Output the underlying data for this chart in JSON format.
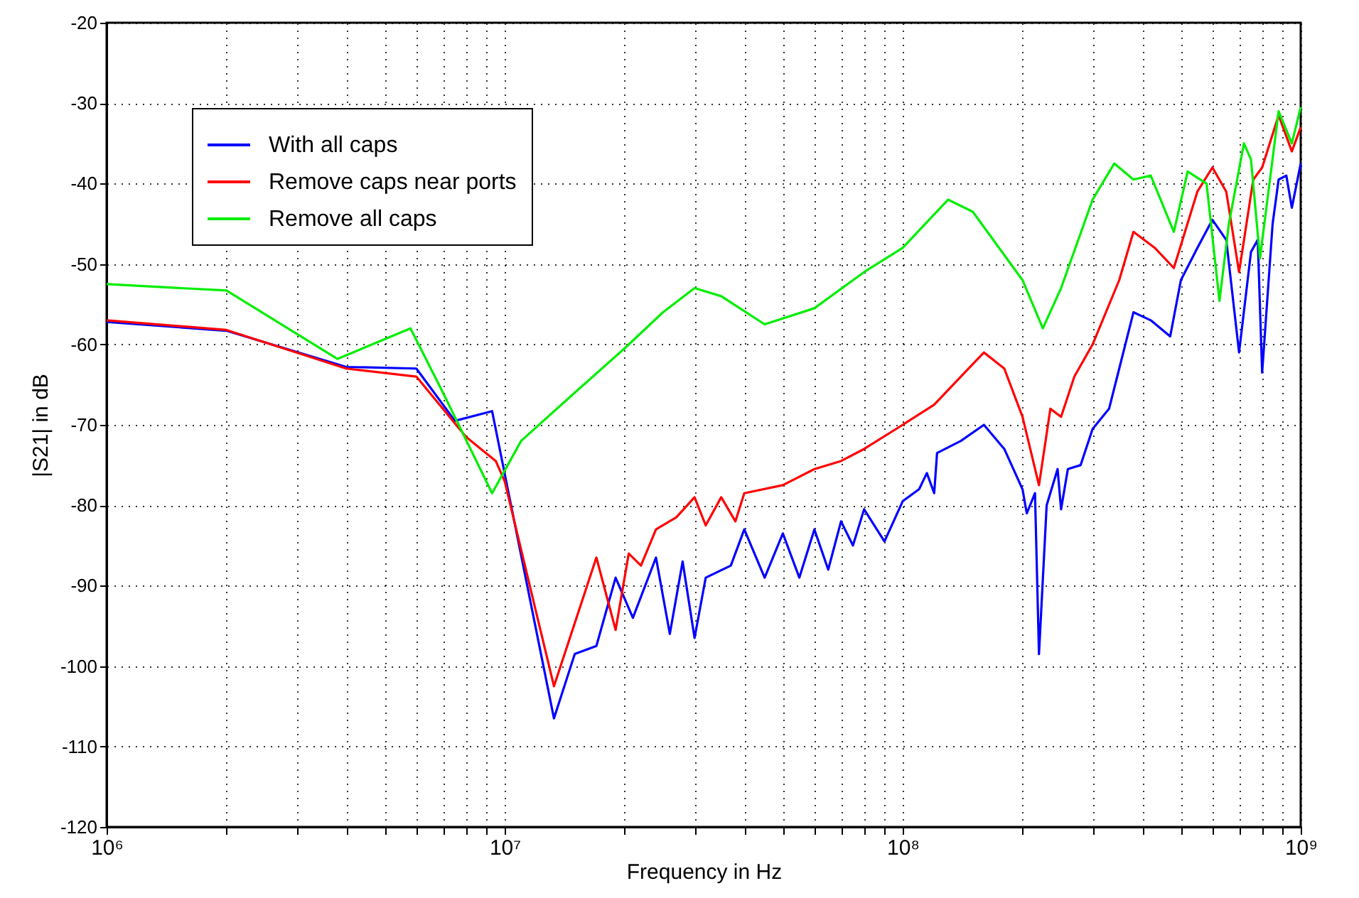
{
  "chart_data": {
    "type": "line",
    "xlabel": "Frequency in Hz",
    "ylabel": "|S21| in dB",
    "log": "x",
    "grid": true,
    "legend": "top left",
    "marker": "none",
    "line_style": "solid",
    "xlim": [
      1000000,
      1000000000
    ],
    "ylim": [
      -120,
      -20
    ],
    "xticks": [
      {
        "value": 1000000,
        "label": "10⁶"
      },
      {
        "value": 2000000,
        "label": null
      },
      {
        "value": 3000000,
        "label": null
      },
      {
        "value": 4000000,
        "label": null
      },
      {
        "value": 5000000,
        "label": null
      },
      {
        "value": 6000000,
        "label": null
      },
      {
        "value": 7000000,
        "label": null
      },
      {
        "value": 8000000,
        "label": null
      },
      {
        "value": 9000000,
        "label": null
      },
      {
        "value": 10000000,
        "label": "10⁷"
      },
      {
        "value": 20000000,
        "label": null
      },
      {
        "value": 30000000,
        "label": null
      },
      {
        "value": 40000000,
        "label": null
      },
      {
        "value": 50000000,
        "label": null
      },
      {
        "value": 60000000,
        "label": null
      },
      {
        "value": 70000000,
        "label": null
      },
      {
        "value": 80000000,
        "label": null
      },
      {
        "value": 90000000,
        "label": null
      },
      {
        "value": 100000000,
        "label": "10⁸"
      },
      {
        "value": 200000000,
        "label": null
      },
      {
        "value": 300000000,
        "label": null
      },
      {
        "value": 400000000,
        "label": null
      },
      {
        "value": 500000000,
        "label": null
      },
      {
        "value": 600000000,
        "label": null
      },
      {
        "value": 700000000,
        "label": null
      },
      {
        "value": 800000000,
        "label": null
      },
      {
        "value": 900000000,
        "label": null
      },
      {
        "value": 1000000000,
        "label": "10⁹"
      }
    ],
    "yticks": [
      -120,
      -110,
      -100,
      -90,
      -80,
      -70,
      -60,
      -50,
      -40,
      -30,
      -20
    ],
    "series": [
      {
        "name": "With all caps",
        "color": "#0000ff",
        "x": [
          1000000,
          2000000,
          4000000,
          6000000,
          7500000,
          9300000,
          13300000,
          15000000,
          17000000,
          19000000,
          21000000,
          24000000,
          26000000,
          28000000,
          30000000,
          32000000,
          37000000,
          40000000,
          45000000,
          50000000,
          55000000,
          60000000,
          65000000,
          70000000,
          75000000,
          80000000,
          90000000,
          100000000,
          110000000,
          115000000,
          120000000,
          122000000,
          140000000,
          160000000,
          180000000,
          200000000,
          205000000,
          215000000,
          220000000,
          230000000,
          245000000,
          250000000,
          260000000,
          280000000,
          300000000,
          330000000,
          350000000,
          380000000,
          420000000,
          470000000,
          500000000,
          550000000,
          600000000,
          650000000,
          700000000,
          750000000,
          780000000,
          800000000,
          850000000,
          880000000,
          920000000,
          950000000,
          1000000000
        ],
        "values": [
          -57.2,
          -58.3,
          -62.8,
          -63,
          -69.5,
          -68.3,
          -106.5,
          -98.5,
          -97.5,
          -89,
          -94,
          -86.5,
          -96,
          -87,
          -96.5,
          -89,
          -87.5,
          -83,
          -89,
          -83.5,
          -89,
          -83,
          -88,
          -82,
          -85,
          -80.5,
          -84.5,
          -79.5,
          -78,
          -76,
          -78.5,
          -73.5,
          -72,
          -70,
          -73,
          -78,
          -81,
          -78.5,
          -98.5,
          -80,
          -75.5,
          -80.5,
          -75.5,
          -75,
          -70.5,
          -68,
          -63,
          -56,
          -57,
          -59,
          -52,
          -48,
          -44.5,
          -47,
          -61,
          -48.5,
          -47,
          -63.5,
          -45,
          -39.5,
          -39,
          -43,
          -37.5
        ]
      },
      {
        "name": "Remove caps near ports",
        "color": "#ff0000",
        "x": [
          1000000,
          2000000,
          4000000,
          6000000,
          8000000,
          9500000,
          10000000,
          13300000,
          17000000,
          19000000,
          20500000,
          22000000,
          24000000,
          27000000,
          30000000,
          32000000,
          35000000,
          38000000,
          40000000,
          50000000,
          60000000,
          70000000,
          80000000,
          100000000,
          120000000,
          140000000,
          160000000,
          180000000,
          200000000,
          220000000,
          235000000,
          250000000,
          270000000,
          300000000,
          350000000,
          380000000,
          430000000,
          480000000,
          550000000,
          600000000,
          650000000,
          700000000,
          760000000,
          800000000,
          880000000,
          950000000,
          1000000000
        ],
        "values": [
          -57,
          -58.2,
          -63,
          -64,
          -71.5,
          -74.5,
          -77,
          -102.5,
          -86.5,
          -95.5,
          -86,
          -87.5,
          -83,
          -81.5,
          -79,
          -82.5,
          -79,
          -82,
          -78.5,
          -77.5,
          -75.5,
          -74.5,
          -73,
          -70,
          -67.5,
          -64,
          -61,
          -63,
          -69,
          -77.5,
          -68,
          -69,
          -64,
          -60,
          -52,
          -46,
          -48,
          -50.5,
          -41,
          -38,
          -41,
          -51,
          -39.5,
          -38,
          -31.5,
          -36,
          -33
        ]
      },
      {
        "name": "Remove all caps",
        "color": "#00ee00",
        "x": [
          1000000,
          2000000,
          3800000,
          5800000,
          7000000,
          9300000,
          11000000,
          15000000,
          20000000,
          25000000,
          30000000,
          35000000,
          45000000,
          60000000,
          80000000,
          100000000,
          130000000,
          150000000,
          200000000,
          225000000,
          250000000,
          300000000,
          340000000,
          380000000,
          420000000,
          480000000,
          520000000,
          580000000,
          625000000,
          660000000,
          720000000,
          750000000,
          790000000,
          880000000,
          950000000,
          1000000000
        ],
        "values": [
          -52.5,
          -53.3,
          -61.8,
          -58,
          -66,
          -78.5,
          -72,
          -66,
          -60.5,
          -56,
          -53,
          -54,
          -57.5,
          -55.5,
          -51,
          -48,
          -42,
          -43.5,
          -52,
          -58,
          -53,
          -42,
          -37.5,
          -39.5,
          -39,
          -46,
          -38.5,
          -40,
          -54.6,
          -45,
          -35,
          -37,
          -49.3,
          -31,
          -35,
          -30.5
        ]
      }
    ]
  }
}
